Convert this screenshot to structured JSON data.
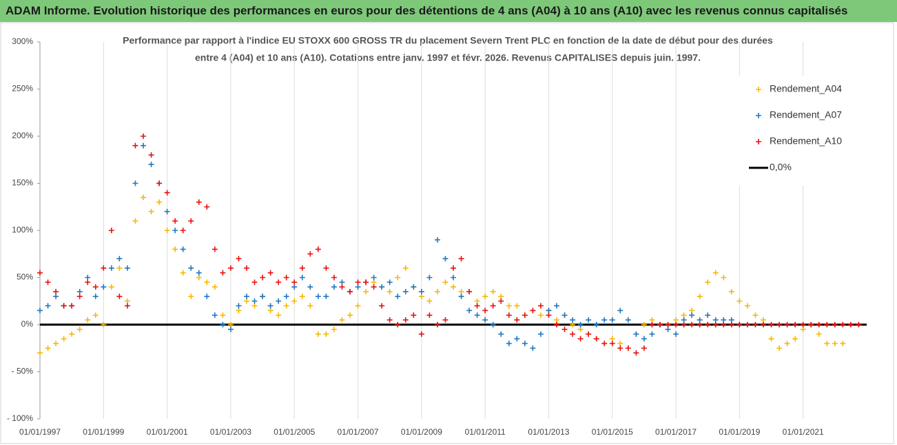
{
  "header": "ADAM Informe. Evolution historique des performances en euros pour des détentions de 4 ans (A04) à 10 ans (A10) avec les revenus connus capitalisés",
  "chart_data": {
    "type": "scatter",
    "title": [
      "Performance par rapport à l'indice EU STOXX 600 GROSS TR  du placement Severn Trent PLC en fonction de la date de début pour des durées",
      "entre 4 (A04) et 10 ans (A10).  Cotations entre janv. 1997 et févr. 2026. Revenus CAPITALISES depuis juin. 1997."
    ],
    "x": [
      "1997-01-01",
      "1997-04-01",
      "1997-07-01",
      "1997-10-01",
      "1998-01-01",
      "1998-04-01",
      "1998-07-01",
      "1998-10-01",
      "1999-01-01",
      "1999-04-01",
      "1999-07-01",
      "1999-10-01",
      "2000-01-01",
      "2000-04-01",
      "2000-07-01",
      "2000-10-01",
      "2001-01-01",
      "2001-04-01",
      "2001-07-01",
      "2001-10-01",
      "2002-01-01",
      "2002-04-01",
      "2002-07-01",
      "2002-10-01",
      "2003-01-01",
      "2003-04-01",
      "2003-07-01",
      "2003-10-01",
      "2004-01-01",
      "2004-04-01",
      "2004-07-01",
      "2004-10-01",
      "2005-01-01",
      "2005-04-01",
      "2005-07-01",
      "2005-10-01",
      "2006-01-01",
      "2006-04-01",
      "2006-07-01",
      "2006-10-01",
      "2007-01-01",
      "2007-04-01",
      "2007-07-01",
      "2007-10-01",
      "2008-01-01",
      "2008-04-01",
      "2008-07-01",
      "2008-10-01",
      "2009-01-01",
      "2009-04-01",
      "2009-07-01",
      "2009-10-01",
      "2010-01-01",
      "2010-04-01",
      "2010-07-01",
      "2010-10-01",
      "2011-01-01",
      "2011-04-01",
      "2011-07-01",
      "2011-10-01",
      "2012-01-01",
      "2012-04-01",
      "2012-07-01",
      "2012-10-01",
      "2013-01-01",
      "2013-04-01",
      "2013-07-01",
      "2013-10-01",
      "2014-01-01",
      "2014-04-01",
      "2014-07-01",
      "2014-10-01",
      "2015-01-01",
      "2015-04-01",
      "2015-07-01",
      "2015-10-01",
      "2016-01-01",
      "2016-04-01",
      "2016-07-01",
      "2016-10-01",
      "2017-01-01",
      "2017-04-01",
      "2017-07-01",
      "2017-10-01",
      "2018-01-01",
      "2018-04-01",
      "2018-07-01",
      "2018-10-01",
      "2019-01-01",
      "2019-04-01",
      "2019-07-01",
      "2019-10-01",
      "2020-01-01",
      "2020-04-01",
      "2020-07-01",
      "2020-10-01",
      "2021-01-01",
      "2021-04-01",
      "2021-07-01",
      "2021-10-01",
      "2022-01-01",
      "2022-04-01",
      "2022-07-01",
      "2022-10-01"
    ],
    "series": [
      {
        "name": "Rendement_A04",
        "color": "#f5b800",
        "values": [
          -30,
          -25,
          -20,
          -15,
          -10,
          -5,
          5,
          10,
          0,
          40,
          60,
          25,
          110,
          135,
          120,
          130,
          100,
          80,
          55,
          30,
          50,
          45,
          40,
          10,
          0,
          15,
          25,
          20,
          30,
          15,
          10,
          20,
          25,
          30,
          20,
          -10,
          -10,
          -5,
          5,
          10,
          20,
          35,
          45,
          40,
          35,
          50,
          60,
          40,
          30,
          25,
          35,
          45,
          40,
          35,
          35,
          25,
          30,
          35,
          30,
          20,
          20,
          10,
          15,
          10,
          15,
          5,
          10,
          0,
          -5,
          -10,
          -15,
          -20,
          -15,
          -20,
          -25,
          -10,
          0,
          5,
          0,
          0,
          5,
          10,
          15,
          30,
          45,
          55,
          50,
          35,
          25,
          20,
          10,
          5,
          -15,
          -25,
          -20,
          -15,
          -5,
          0,
          -10,
          -20,
          -20,
          -20,
          null,
          null
        ]
      },
      {
        "name": "Rendement_A07",
        "color": "#1f77c0",
        "values": [
          15,
          20,
          30,
          20,
          20,
          35,
          50,
          30,
          40,
          60,
          70,
          60,
          150,
          190,
          170,
          150,
          120,
          100,
          80,
          60,
          55,
          30,
          10,
          0,
          -5,
          20,
          30,
          25,
          30,
          20,
          25,
          30,
          40,
          50,
          40,
          30,
          30,
          40,
          45,
          35,
          40,
          45,
          50,
          40,
          45,
          30,
          35,
          40,
          35,
          50,
          90,
          70,
          50,
          30,
          15,
          10,
          5,
          0,
          -10,
          -20,
          -15,
          -20,
          -25,
          -10,
          15,
          20,
          10,
          5,
          0,
          5,
          0,
          5,
          5,
          15,
          5,
          -10,
          -15,
          -10,
          0,
          -5,
          -10,
          5,
          10,
          5,
          10,
          5,
          5,
          5,
          0,
          null,
          null,
          null,
          null,
          null,
          null,
          null,
          null,
          null,
          null,
          null,
          null,
          null,
          null,
          null
        ]
      },
      {
        "name": "Rendement_A10",
        "color": "#e8100e",
        "values": [
          55,
          45,
          35,
          20,
          20,
          30,
          45,
          40,
          60,
          100,
          30,
          20,
          190,
          200,
          180,
          150,
          140,
          110,
          100,
          110,
          130,
          125,
          80,
          55,
          60,
          70,
          60,
          45,
          50,
          55,
          45,
          50,
          45,
          60,
          75,
          80,
          60,
          50,
          40,
          35,
          45,
          45,
          40,
          20,
          5,
          0,
          5,
          10,
          -10,
          10,
          0,
          5,
          60,
          70,
          35,
          20,
          15,
          20,
          25,
          10,
          5,
          10,
          15,
          20,
          10,
          0,
          -5,
          -10,
          -15,
          -10,
          -15,
          -20,
          -20,
          -25,
          -25,
          -30,
          -25,
          0,
          0,
          0,
          0,
          0,
          0,
          0,
          0,
          0,
          0,
          0,
          0,
          0,
          0,
          0,
          0,
          0,
          0,
          0,
          0,
          0,
          0,
          0,
          0,
          0,
          0,
          0
        ]
      }
    ],
    "reference_line": {
      "name": "0,0%",
      "value": 0,
      "color": "#000000"
    },
    "xlim": [
      "1997-01-01",
      "2023-01-01"
    ],
    "xticks": [
      {
        "value": "1997-01-01",
        "label": "01/01/1997"
      },
      {
        "value": "1999-01-01",
        "label": "01/01/1999"
      },
      {
        "value": "2001-01-01",
        "label": "01/01/2001"
      },
      {
        "value": "2003-01-01",
        "label": "01/01/2003"
      },
      {
        "value": "2005-01-01",
        "label": "01/01/2005"
      },
      {
        "value": "2007-01-01",
        "label": "01/01/2007"
      },
      {
        "value": "2009-01-01",
        "label": "01/01/2009"
      },
      {
        "value": "2011-01-01",
        "label": "01/01/2011"
      },
      {
        "value": "2013-01-01",
        "label": "01/01/2013"
      },
      {
        "value": "2015-01-01",
        "label": "01/01/2015"
      },
      {
        "value": "2017-01-01",
        "label": "01/01/2017"
      },
      {
        "value": "2019-01-01",
        "label": "01/01/2019"
      },
      {
        "value": "2021-01-01",
        "label": "01/01/2021"
      }
    ],
    "ylim": [
      -100,
      300
    ],
    "yticks": [
      {
        "value": -100,
        "label": "- 100%"
      },
      {
        "value": -50,
        "label": "- 50%"
      },
      {
        "value": 0,
        "label": "0%"
      },
      {
        "value": 50,
        "label": "50%"
      },
      {
        "value": 100,
        "label": "100%"
      },
      {
        "value": 150,
        "label": "150%"
      },
      {
        "value": 200,
        "label": "200%"
      },
      {
        "value": 250,
        "label": "250%"
      },
      {
        "value": 300,
        "label": "300%"
      }
    ],
    "grid": "x",
    "legend": "top-right"
  }
}
